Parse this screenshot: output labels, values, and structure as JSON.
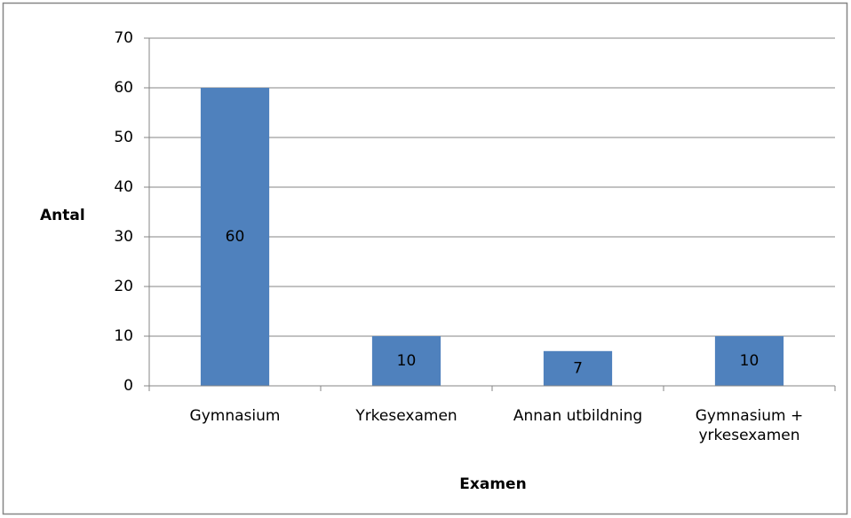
{
  "chart_data": {
    "type": "bar",
    "categories": [
      "Gymnasium",
      "Yrkesexamen",
      "Annan utbildning",
      "Gymnasium + yrkesexamen"
    ],
    "values": [
      60,
      10,
      7,
      10
    ],
    "color": "#4f81bd",
    "y_label": "Antal",
    "x_label": "Examen",
    "ylim": [
      0,
      70
    ],
    "yticks": [
      0,
      10,
      20,
      30,
      40,
      50,
      60,
      70
    ],
    "grid": true
  }
}
